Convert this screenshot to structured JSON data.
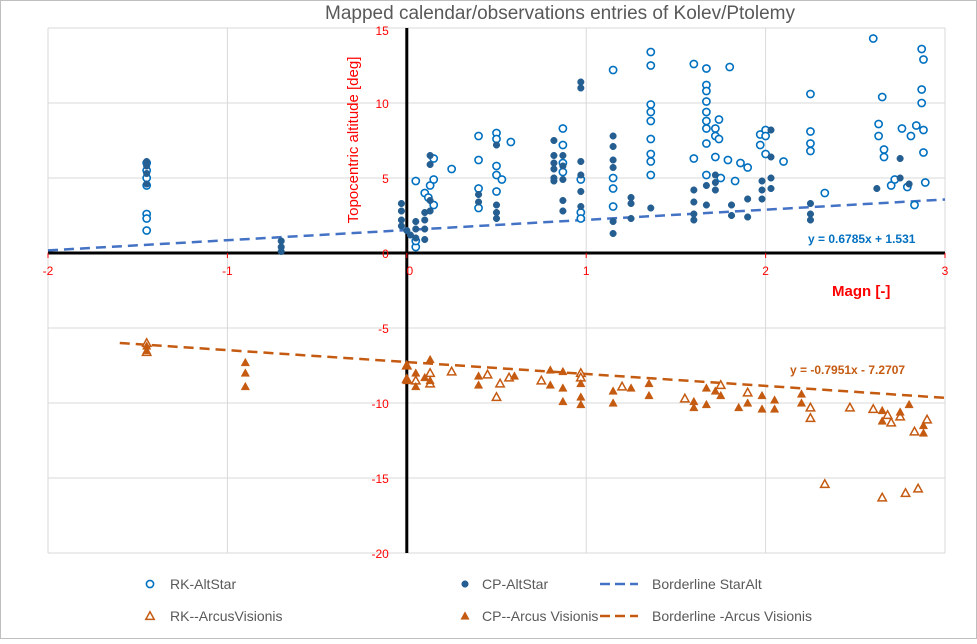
{
  "chart_data": {
    "type": "scatter",
    "title": "Mapped calendar/observations entries of Kolev/Ptolemy",
    "xlabel": "Magn [-]",
    "ylabel": "Topocentric altitude [deg]",
    "xlim": [
      -2,
      3
    ],
    "ylim": [
      -20,
      15
    ],
    "xticks": [
      -2,
      -1,
      0,
      1,
      2,
      3
    ],
    "yticks": [
      -20,
      -15,
      -10,
      -5,
      0,
      5,
      10,
      15
    ],
    "grid": true,
    "legend_position": "bottom",
    "series": [
      {
        "name": "RK-AltStar",
        "marker": "open-circle",
        "color": "#0070C0",
        "points": [
          [
            -1.45,
            6.0
          ],
          [
            -1.45,
            5.5
          ],
          [
            -1.45,
            5.0
          ],
          [
            -1.45,
            4.5
          ],
          [
            -1.45,
            2.6
          ],
          [
            -1.45,
            2.3
          ],
          [
            -1.45,
            1.5
          ],
          [
            0.05,
            4.8
          ],
          [
            0.05,
            0.4
          ],
          [
            0.05,
            0.8
          ],
          [
            0.1,
            4.0
          ],
          [
            0.12,
            3.7
          ],
          [
            0.13,
            4.5
          ],
          [
            0.15,
            6.3
          ],
          [
            0.15,
            4.9
          ],
          [
            0.15,
            3.2
          ],
          [
            0.25,
            5.6
          ],
          [
            0.4,
            7.8
          ],
          [
            0.4,
            6.2
          ],
          [
            0.4,
            4.3
          ],
          [
            0.4,
            3.0
          ],
          [
            0.5,
            8.0
          ],
          [
            0.5,
            7.6
          ],
          [
            0.5,
            5.8
          ],
          [
            0.5,
            5.2
          ],
          [
            0.5,
            4.1
          ],
          [
            0.53,
            4.9
          ],
          [
            0.58,
            7.4
          ],
          [
            0.87,
            8.3
          ],
          [
            0.87,
            7.2
          ],
          [
            0.87,
            6.0
          ],
          [
            0.87,
            5.4
          ],
          [
            0.97,
            4.9
          ],
          [
            0.97,
            2.7
          ],
          [
            0.97,
            2.3
          ],
          [
            1.15,
            12.2
          ],
          [
            1.15,
            5.0
          ],
          [
            1.15,
            4.3
          ],
          [
            1.15,
            3.1
          ],
          [
            1.36,
            13.4
          ],
          [
            1.36,
            12.5
          ],
          [
            1.36,
            9.9
          ],
          [
            1.36,
            9.4
          ],
          [
            1.36,
            8.8
          ],
          [
            1.36,
            7.6
          ],
          [
            1.36,
            6.6
          ],
          [
            1.36,
            6.1
          ],
          [
            1.36,
            5.2
          ],
          [
            1.6,
            12.6
          ],
          [
            1.6,
            6.3
          ],
          [
            1.67,
            12.3
          ],
          [
            1.67,
            11.2
          ],
          [
            1.67,
            10.8
          ],
          [
            1.67,
            10.1
          ],
          [
            1.67,
            9.4
          ],
          [
            1.67,
            8.8
          ],
          [
            1.67,
            8.3
          ],
          [
            1.67,
            7.3
          ],
          [
            1.67,
            5.2
          ],
          [
            1.72,
            8.3
          ],
          [
            1.72,
            7.8
          ],
          [
            1.74,
            8.9
          ],
          [
            1.74,
            7.6
          ],
          [
            1.72,
            6.4
          ],
          [
            1.75,
            5.0
          ],
          [
            1.8,
            12.4
          ],
          [
            1.79,
            6.2
          ],
          [
            1.83,
            4.8
          ],
          [
            1.86,
            6.0
          ],
          [
            1.9,
            5.7
          ],
          [
            1.97,
            7.2
          ],
          [
            1.97,
            7.9
          ],
          [
            2.0,
            8.2
          ],
          [
            2.0,
            7.8
          ],
          [
            2.0,
            6.6
          ],
          [
            2.1,
            6.1
          ],
          [
            2.25,
            10.6
          ],
          [
            2.25,
            8.1
          ],
          [
            2.25,
            7.3
          ],
          [
            2.25,
            6.8
          ],
          [
            2.33,
            4.0
          ],
          [
            2.6,
            14.3
          ],
          [
            2.65,
            10.4
          ],
          [
            2.63,
            8.6
          ],
          [
            2.63,
            7.8
          ],
          [
            2.66,
            6.9
          ],
          [
            2.66,
            6.4
          ],
          [
            2.7,
            4.5
          ],
          [
            2.72,
            4.9
          ],
          [
            2.76,
            8.3
          ],
          [
            2.79,
            4.4
          ],
          [
            2.81,
            7.8
          ],
          [
            2.84,
            8.5
          ],
          [
            2.87,
            13.6
          ],
          [
            2.88,
            12.9
          ],
          [
            2.87,
            10.9
          ],
          [
            2.87,
            10.0
          ],
          [
            2.88,
            8.2
          ],
          [
            2.88,
            6.7
          ],
          [
            2.89,
            4.7
          ],
          [
            2.83,
            3.2
          ]
        ]
      },
      {
        "name": "CP-AltStar",
        "marker": "filled-circle",
        "color": "#255E91",
        "points": [
          [
            -1.45,
            6.1
          ],
          [
            -1.45,
            5.8
          ],
          [
            -1.45,
            5.3
          ],
          [
            -1.45,
            4.6
          ],
          [
            -0.7,
            0.8
          ],
          [
            -0.7,
            0.4
          ],
          [
            -0.7,
            0.1
          ],
          [
            -0.03,
            3.3
          ],
          [
            -0.03,
            2.8
          ],
          [
            -0.03,
            2.2
          ],
          [
            -0.03,
            1.8
          ],
          [
            0,
            1.5
          ],
          [
            0.02,
            1.2
          ],
          [
            0.05,
            2.1
          ],
          [
            0.05,
            1.6
          ],
          [
            0.05,
            1.0
          ],
          [
            0.1,
            2.7
          ],
          [
            0.1,
            2.2
          ],
          [
            0.1,
            1.6
          ],
          [
            0.1,
            0.9
          ],
          [
            0.13,
            6.5
          ],
          [
            0.13,
            5.9
          ],
          [
            0.13,
            3.5
          ],
          [
            0.13,
            2.8
          ],
          [
            0.4,
            3.9
          ],
          [
            0.4,
            3.4
          ],
          [
            0.5,
            7.2
          ],
          [
            0.5,
            3.2
          ],
          [
            0.5,
            2.7
          ],
          [
            0.5,
            2.3
          ],
          [
            0.82,
            7.5
          ],
          [
            0.82,
            6.5
          ],
          [
            0.82,
            6.0
          ],
          [
            0.82,
            5.6
          ],
          [
            0.82,
            5.0
          ],
          [
            0.82,
            4.8
          ],
          [
            0.87,
            6.5
          ],
          [
            0.87,
            5.8
          ],
          [
            0.87,
            4.9
          ],
          [
            0.87,
            3.5
          ],
          [
            0.87,
            2.8
          ],
          [
            0.97,
            11.4
          ],
          [
            0.97,
            11.0
          ],
          [
            0.97,
            6.1
          ],
          [
            0.97,
            5.2
          ],
          [
            0.97,
            4.1
          ],
          [
            0.97,
            3.1
          ],
          [
            1.15,
            7.8
          ],
          [
            1.15,
            7.1
          ],
          [
            1.15,
            6.2
          ],
          [
            1.15,
            5.7
          ],
          [
            1.15,
            2.1
          ],
          [
            1.15,
            1.3
          ],
          [
            1.25,
            3.7
          ],
          [
            1.25,
            3.3
          ],
          [
            1.25,
            2.3
          ],
          [
            1.36,
            3.0
          ],
          [
            1.6,
            4.2
          ],
          [
            1.6,
            3.4
          ],
          [
            1.6,
            2.6
          ],
          [
            1.6,
            2.2
          ],
          [
            1.67,
            4.5
          ],
          [
            1.67,
            3.2
          ],
          [
            1.72,
            5.2
          ],
          [
            1.72,
            4.7
          ],
          [
            1.72,
            4.2
          ],
          [
            1.81,
            3.2
          ],
          [
            1.81,
            2.5
          ],
          [
            1.9,
            3.6
          ],
          [
            1.9,
            2.4
          ],
          [
            1.98,
            4.8
          ],
          [
            1.98,
            4.2
          ],
          [
            1.98,
            3.6
          ],
          [
            2.03,
            8.2
          ],
          [
            2.03,
            6.4
          ],
          [
            2.03,
            5.0
          ],
          [
            2.03,
            4.3
          ],
          [
            2.25,
            3.3
          ],
          [
            2.25,
            2.6
          ],
          [
            2.25,
            2.2
          ],
          [
            2.62,
            4.3
          ],
          [
            2.75,
            6.3
          ],
          [
            2.75,
            5.0
          ],
          [
            2.8,
            4.6
          ]
        ]
      },
      {
        "name": "Borderline StarAlt",
        "type": "trendline",
        "color": "#4472C4",
        "slope": 0.6785,
        "intercept": 1.531,
        "x_range": [
          -2,
          3
        ],
        "label": "y = 0.6785x + 1.531"
      },
      {
        "name": "RK--ArcusVisionis",
        "marker": "open-triangle",
        "color": "#C55A11",
        "points": [
          [
            -1.45,
            -6.0
          ],
          [
            -1.45,
            -6.6
          ],
          [
            0,
            -7.5
          ],
          [
            0,
            -8.4
          ],
          [
            0.05,
            -8.5
          ],
          [
            0.13,
            -8.0
          ],
          [
            0.13,
            -8.7
          ],
          [
            0.25,
            -7.9
          ],
          [
            0.45,
            -8.1
          ],
          [
            0.5,
            -9.6
          ],
          [
            0.52,
            -8.7
          ],
          [
            0.57,
            -8.3
          ],
          [
            0.75,
            -8.5
          ],
          [
            0.97,
            -8.0
          ],
          [
            0.97,
            -8.3
          ],
          [
            1.2,
            -8.9
          ],
          [
            1.55,
            -9.7
          ],
          [
            1.75,
            -8.8
          ],
          [
            1.9,
            -9.3
          ],
          [
            2.25,
            -10.3
          ],
          [
            2.25,
            -11.0
          ],
          [
            2.33,
            -15.4
          ],
          [
            2.47,
            -10.3
          ],
          [
            2.6,
            -10.4
          ],
          [
            2.68,
            -10.8
          ],
          [
            2.75,
            -10.9
          ],
          [
            2.83,
            -11.9
          ],
          [
            2.9,
            -11.1
          ],
          [
            2.65,
            -16.3
          ],
          [
            2.78,
            -16.0
          ],
          [
            2.85,
            -15.7
          ],
          [
            2.7,
            -11.3
          ]
        ]
      },
      {
        "name": "CP--Arcus Visionis",
        "marker": "filled-triangle",
        "color": "#C55A11",
        "points": [
          [
            -1.45,
            -6.2
          ],
          [
            -1.45,
            -6.5
          ],
          [
            -0.9,
            -7.3
          ],
          [
            -0.9,
            -8.0
          ],
          [
            -0.9,
            -8.9
          ],
          [
            0,
            -7.5
          ],
          [
            0,
            -8.5
          ],
          [
            0.05,
            -8.0
          ],
          [
            0.05,
            -8.9
          ],
          [
            0.1,
            -8.3
          ],
          [
            0.13,
            -7.1
          ],
          [
            0.13,
            -8.5
          ],
          [
            0.4,
            -8.2
          ],
          [
            0.4,
            -8.8
          ],
          [
            0.6,
            -8.2
          ],
          [
            0.8,
            -7.8
          ],
          [
            0.8,
            -8.8
          ],
          [
            0.87,
            -7.9
          ],
          [
            0.87,
            -9.0
          ],
          [
            0.87,
            -9.9
          ],
          [
            0.97,
            -8.7
          ],
          [
            0.97,
            -9.6
          ],
          [
            0.97,
            -10.1
          ],
          [
            1.15,
            -9.2
          ],
          [
            1.15,
            -10.0
          ],
          [
            1.25,
            -9.0
          ],
          [
            1.35,
            -8.7
          ],
          [
            1.35,
            -9.5
          ],
          [
            1.6,
            -9.9
          ],
          [
            1.6,
            -10.3
          ],
          [
            1.67,
            -9.0
          ],
          [
            1.67,
            -10.1
          ],
          [
            1.72,
            -9.2
          ],
          [
            1.75,
            -9.5
          ],
          [
            1.85,
            -10.3
          ],
          [
            1.9,
            -10.0
          ],
          [
            1.98,
            -9.5
          ],
          [
            1.98,
            -10.4
          ],
          [
            2.05,
            -9.8
          ],
          [
            2.05,
            -10.4
          ],
          [
            2.2,
            -9.4
          ],
          [
            2.2,
            -10.0
          ],
          [
            2.65,
            -10.5
          ],
          [
            2.65,
            -11.2
          ],
          [
            2.75,
            -10.6
          ],
          [
            2.8,
            -10.1
          ],
          [
            2.88,
            -11.5
          ],
          [
            2.88,
            -12.0
          ]
        ]
      },
      {
        "name": "Borderline -Arcus Visionis",
        "type": "trendline",
        "color": "#C55A11",
        "slope": -0.7951,
        "intercept": -7.2707,
        "x_range": [
          -1.6,
          3
        ],
        "label": "y = -0.7951x - 7.2707"
      }
    ]
  }
}
